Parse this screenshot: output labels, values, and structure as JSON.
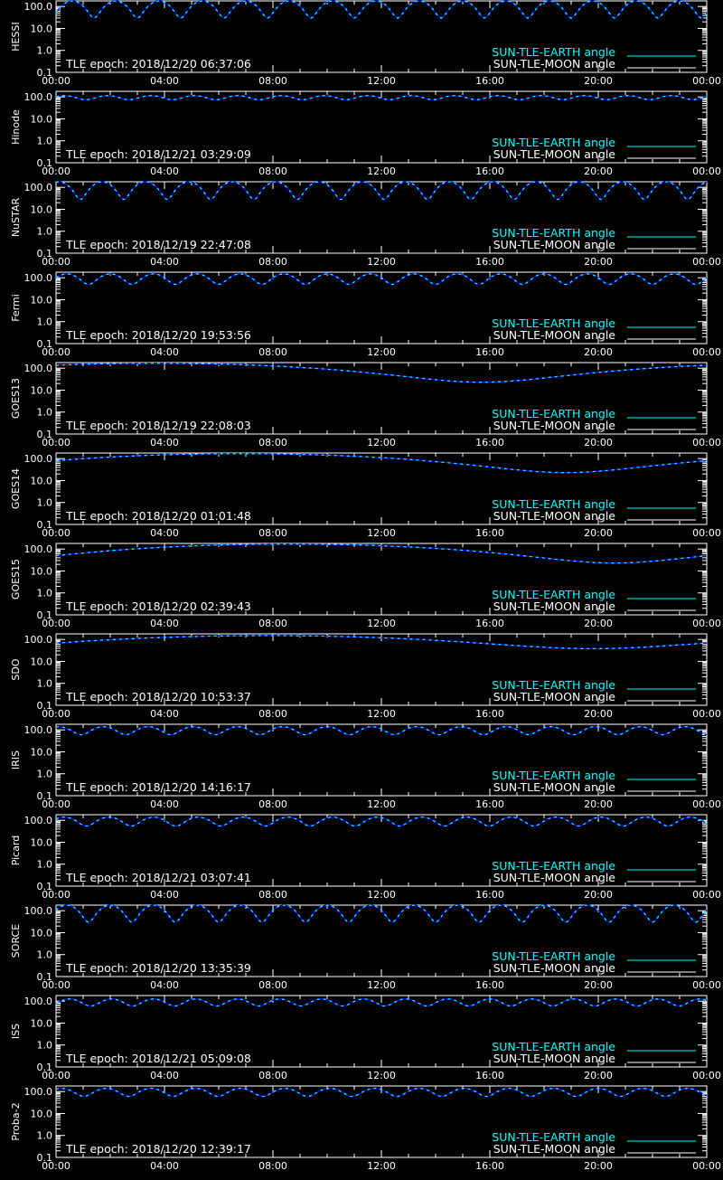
{
  "colors": {
    "background": "#000000",
    "axes": "#ffffff",
    "earth_angle": "#00ffff",
    "moon_angle": "#ffffff",
    "curve": "#0000ff"
  },
  "legend": {
    "earth": "SUN-TLE-EARTH angle",
    "moon": "SUN-TLE-MOON angle"
  },
  "x_ticks": [
    "00:00",
    "04:00",
    "08:00",
    "12:00",
    "16:00",
    "20:00",
    "00:00"
  ],
  "y_ticks": [
    "100.0",
    "10.0",
    "1.0",
    "0.1"
  ],
  "chart_data": [
    {
      "type": "line",
      "ylabel": "HESSI",
      "epoch": "TLE epoch: 2018/12/20 06:37:06",
      "yscale": "log",
      "ylim": [
        0.1,
        180
      ],
      "xlim": [
        0,
        24
      ],
      "wave": {
        "period_h": 1.6,
        "phase_h": 0.6,
        "min": 30,
        "max": 178
      }
    },
    {
      "type": "line",
      "ylabel": "Hinode",
      "epoch": "TLE epoch: 2018/12/21 03:29:09",
      "yscale": "log",
      "ylim": [
        0.1,
        180
      ],
      "xlim": [
        0,
        24
      ],
      "wave": {
        "period_h": 1.6,
        "phase_h": 0.3,
        "min": 75,
        "max": 115
      }
    },
    {
      "type": "line",
      "ylabel": "NuSTAR",
      "epoch": "TLE epoch: 2018/12/19 22:47:08",
      "yscale": "log",
      "ylim": [
        0.1,
        180
      ],
      "xlim": [
        0,
        24
      ],
      "wave": {
        "period_h": 1.6,
        "phase_h": 0.1,
        "min": 28,
        "max": 178
      }
    },
    {
      "type": "line",
      "ylabel": "Fermi",
      "epoch": "TLE epoch: 2018/12/20 19:53:56",
      "yscale": "log",
      "ylim": [
        0.1,
        180
      ],
      "xlim": [
        0,
        24
      ],
      "wave": {
        "period_h": 1.6,
        "phase_h": 0.4,
        "min": 50,
        "max": 150
      }
    },
    {
      "type": "line",
      "ylabel": "GOES13",
      "epoch": "TLE epoch: 2018/12/19 22:08:03",
      "yscale": "log",
      "ylim": [
        0.1,
        180
      ],
      "xlim": [
        0,
        24
      ],
      "wave": {
        "period_h": 24,
        "phase_h": 3.7,
        "min": 23,
        "max": 168
      }
    },
    {
      "type": "line",
      "ylabel": "GOES14",
      "epoch": "TLE epoch: 2018/12/20 01:01:48",
      "yscale": "log",
      "ylim": [
        0.1,
        180
      ],
      "xlim": [
        0,
        24
      ],
      "wave": {
        "period_h": 24,
        "phase_h": 6.8,
        "min": 23,
        "max": 168
      }
    },
    {
      "type": "line",
      "ylabel": "GOES15",
      "epoch": "TLE epoch: 2018/12/20 02:39:43",
      "yscale": "log",
      "ylim": [
        0.1,
        180
      ],
      "xlim": [
        0,
        24
      ],
      "wave": {
        "period_h": 24,
        "phase_h": 8.6,
        "min": 23,
        "max": 168
      }
    },
    {
      "type": "line",
      "ylabel": "SDO",
      "epoch": "TLE epoch: 2018/12/20 10:53:37",
      "yscale": "log",
      "ylim": [
        0.1,
        180
      ],
      "xlim": [
        0,
        24
      ],
      "wave": {
        "period_h": 24,
        "phase_h": 7.8,
        "min": 38,
        "max": 150
      }
    },
    {
      "type": "line",
      "ylabel": "IRIS",
      "epoch": "TLE epoch: 2018/12/20 14:16:17",
      "yscale": "log",
      "ylim": [
        0.1,
        180
      ],
      "xlim": [
        0,
        24
      ],
      "wave": {
        "period_h": 1.65,
        "phase_h": 0.1,
        "min": 60,
        "max": 140
      }
    },
    {
      "type": "line",
      "ylabel": "Picard",
      "epoch": "TLE epoch: 2018/12/21 03:07:41",
      "yscale": "log",
      "ylim": [
        0.1,
        180
      ],
      "xlim": [
        0,
        24
      ],
      "wave": {
        "period_h": 1.65,
        "phase_h": 0.3,
        "min": 55,
        "max": 140
      }
    },
    {
      "type": "line",
      "ylabel": "SORCE",
      "epoch": "TLE epoch: 2018/12/20 13:35:39",
      "yscale": "log",
      "ylim": [
        0.1,
        180
      ],
      "xlim": [
        0,
        24
      ],
      "wave": {
        "period_h": 1.6,
        "phase_h": 0.4,
        "min": 30,
        "max": 178
      }
    },
    {
      "type": "line",
      "ylabel": "ISS",
      "epoch": "TLE epoch: 2018/12/21 05:09:08",
      "yscale": "log",
      "ylim": [
        0.1,
        180
      ],
      "xlim": [
        0,
        24
      ],
      "wave": {
        "period_h": 1.55,
        "phase_h": 0.5,
        "min": 60,
        "max": 125
      }
    },
    {
      "type": "line",
      "ylabel": "Proba-2",
      "epoch": "TLE epoch: 2018/12/20 12:39:17",
      "yscale": "log",
      "ylim": [
        0.1,
        180
      ],
      "xlim": [
        0,
        24
      ],
      "wave": {
        "period_h": 1.65,
        "phase_h": 0.2,
        "min": 60,
        "max": 140
      }
    }
  ]
}
